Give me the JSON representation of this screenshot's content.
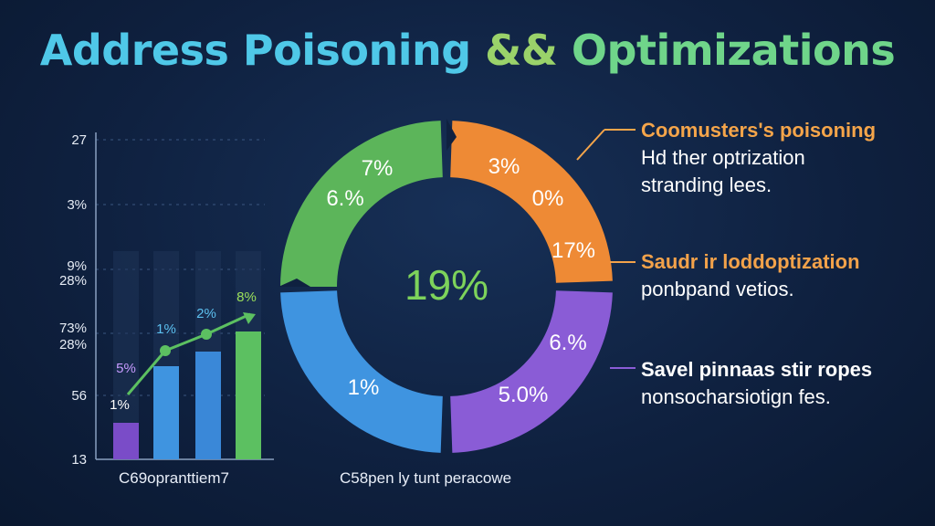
{
  "title": {
    "part1": "Address Poisoning",
    "amp": "&&",
    "part2": "Optimizations"
  },
  "callouts": [
    {
      "heading": "Coomusters's poisoning",
      "line2": "Hd ther optrization",
      "line3": "stranding lees.",
      "color": "#f5a54a"
    },
    {
      "heading": "Saudr ir loddoptization",
      "line2": "ponbpand vetios.",
      "color": "#f3a24a"
    },
    {
      "heading": "Savel pinnaas stir ropes",
      "line2": "nonsocharsiotign fes.",
      "color": "#8a5cd6"
    }
  ],
  "chart_data": [
    {
      "type": "bar",
      "title": "",
      "xlabel": "C69opranttiem7",
      "ylabel": "",
      "y_tick_labels": [
        "27",
        "3%",
        "9%",
        "28%",
        "73%",
        "28%",
        "56",
        "13"
      ],
      "categories": [
        "",
        "",
        "",
        ""
      ],
      "values": [
        0.28,
        0.7,
        0.82,
        0.95
      ],
      "bar_colors": [
        "#7a4cc8",
        "#3f94e0",
        "#3a88d8",
        "#5cc061"
      ],
      "data_labels": [
        "5%",
        "1%",
        "2%",
        "8%"
      ],
      "extra_labels": [
        "1%"
      ],
      "trend_line": {
        "color": "#5cc061",
        "points": [
          0.55,
          0.82,
          0.9,
          1.05
        ]
      },
      "grid": true
    },
    {
      "type": "pie",
      "title": "",
      "xlabel": "C58pen ly tunt peracowe",
      "center_label": "19%",
      "center_color": "#7dd35b",
      "slices": [
        {
          "color": "#5cb55a",
          "labels": [
            "7%",
            "6.%"
          ]
        },
        {
          "color": "#ee8a35",
          "labels": [
            "3%",
            "0%",
            "17%"
          ]
        },
        {
          "color": "#8a5cd6",
          "labels": [
            "6.%",
            "5.0%"
          ]
        },
        {
          "color": "#3f94e0",
          "labels": [
            "1%"
          ]
        }
      ]
    }
  ]
}
